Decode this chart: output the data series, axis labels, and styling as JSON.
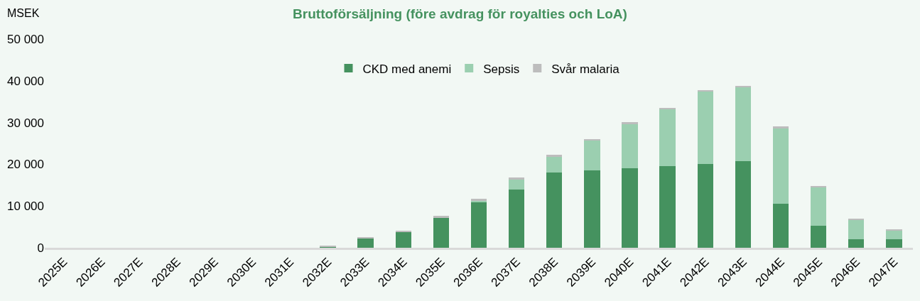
{
  "chart_data": {
    "type": "bar",
    "stacked": true,
    "title": "Bruttoförsäljning (före avdrag för royalties och LoA)",
    "ylabel": "MSEK",
    "categories": [
      "2025E",
      "2026E",
      "2027E",
      "2028E",
      "2029E",
      "2030E",
      "2031E",
      "2032E",
      "2033E",
      "2034E",
      "2035E",
      "2036E",
      "2037E",
      "2038E",
      "2039E",
      "2040E",
      "2041E",
      "2042E",
      "2043E",
      "2044E",
      "2045E",
      "2046E",
      "2047E"
    ],
    "series": [
      {
        "name": "CKD med anemi",
        "color": "#45925f",
        "values": [
          0,
          0,
          0,
          0,
          0,
          0,
          0,
          200,
          2200,
          3800,
          7300,
          11000,
          14000,
          18000,
          18500,
          19000,
          19600,
          20100,
          20800,
          10500,
          5300,
          2000,
          2000
        ]
      },
      {
        "name": "Sepsis",
        "color": "#9bcfb0",
        "values": [
          0,
          0,
          0,
          0,
          0,
          0,
          0,
          0,
          0,
          0,
          0,
          300,
          2300,
          3800,
          7100,
          10600,
          13600,
          17400,
          17700,
          18100,
          9300,
          4800,
          2200
        ]
      },
      {
        "name": "Svår malaria",
        "color": "#bdbdbd",
        "values": [
          0,
          0,
          0,
          0,
          0,
          null,
          null,
          300,
          400,
          300,
          300,
          500,
          500,
          500,
          500,
          500,
          200,
          200,
          200,
          400,
          200,
          200,
          200
        ]
      }
    ],
    "ylim": [
      0,
      50000
    ],
    "yticks": [
      0,
      {
        "value": 10000,
        "label": "10 000"
      },
      {
        "value": 20000,
        "label": "20 000"
      },
      {
        "value": 30000,
        "label": "30 000"
      },
      {
        "value": 40000,
        "label": "40 000"
      },
      {
        "value": 50000,
        "label": "50 000"
      }
    ],
    "grid": false,
    "legend": "top"
  }
}
